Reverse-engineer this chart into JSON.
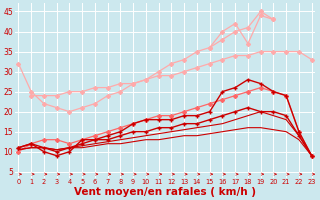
{
  "background_color": "#cce8ee",
  "grid_color": "#ffffff",
  "xlabel": "Vent moyen/en rafales ( km/h )",
  "xlabel_color": "#cc0000",
  "xlabel_fontsize": 7.5,
  "xtick_labels": [
    "0",
    "1",
    "2",
    "3",
    "4",
    "5",
    "6",
    "7",
    "8",
    "9",
    "10",
    "11",
    "12",
    "13",
    "14",
    "15",
    "16",
    "17",
    "18",
    "19",
    "20",
    "21",
    "22",
    "23"
  ],
  "ytick_vals": [
    5,
    10,
    15,
    20,
    25,
    30,
    35,
    40,
    45
  ],
  "ytick_labels": [
    "5",
    "10",
    "15",
    "20",
    "25",
    "30",
    "35",
    "40",
    "45"
  ],
  "ylim": [
    3.5,
    47
  ],
  "xlim": [
    -0.3,
    23.3
  ],
  "series": [
    {
      "x": [
        0,
        1,
        2,
        3,
        4,
        5,
        6,
        7,
        8,
        9,
        10,
        11,
        12,
        13,
        14,
        15,
        16,
        17,
        18,
        19,
        20
      ],
      "y": [
        32,
        25,
        22,
        21,
        20,
        21,
        22,
        24,
        25,
        27,
        28,
        30,
        32,
        33,
        35,
        36,
        38,
        40,
        41,
        45,
        43
      ],
      "color": "#ffaaaa",
      "marker": "D",
      "markersize": 2.0,
      "linewidth": 0.9,
      "alpha": 1.0
    },
    {
      "x": [
        15,
        16,
        17,
        18,
        19,
        20
      ],
      "y": [
        36,
        40,
        42,
        37,
        44,
        43
      ],
      "color": "#ffaaaa",
      "marker": "D",
      "markersize": 2.0,
      "linewidth": 0.9,
      "alpha": 1.0
    },
    {
      "x": [
        0,
        1,
        2,
        3,
        4,
        5,
        6,
        7,
        8,
        9,
        10,
        11,
        12,
        13,
        14,
        15,
        16,
        17,
        18,
        19,
        20,
        21,
        22,
        23
      ],
      "y": [
        null,
        24,
        24,
        24,
        25,
        25,
        26,
        26,
        27,
        27,
        28,
        29,
        29,
        30,
        31,
        32,
        33,
        34,
        34,
        35,
        35,
        35,
        35,
        33
      ],
      "color": "#ffaaaa",
      "marker": "D",
      "markersize": 2.0,
      "linewidth": 0.9,
      "alpha": 1.0
    },
    {
      "x": [
        0,
        1,
        2,
        3,
        4,
        5,
        6,
        7,
        8,
        9,
        10,
        11,
        12,
        13,
        14,
        15,
        16,
        17,
        18,
        19,
        20,
        21,
        22,
        23
      ],
      "y": [
        10,
        12,
        13,
        13,
        12,
        13,
        14,
        15,
        16,
        17,
        18,
        19,
        19,
        20,
        21,
        22,
        23,
        24,
        25,
        26,
        25,
        24,
        15,
        9
      ],
      "color": "#ff6666",
      "marker": "D",
      "markersize": 2.0,
      "linewidth": 0.9,
      "alpha": 1.0
    },
    {
      "x": [
        0,
        1,
        2,
        3,
        4,
        5,
        6,
        7,
        8,
        9,
        10,
        11,
        12,
        13,
        14,
        15,
        16,
        17,
        18,
        19,
        20,
        21,
        22,
        23
      ],
      "y": [
        11,
        12,
        10,
        9,
        10,
        13,
        13,
        14,
        15,
        17,
        18,
        18,
        18,
        19,
        19,
        20,
        25,
        26,
        28,
        27,
        25,
        24,
        15,
        9
      ],
      "color": "#cc0000",
      "marker": "+",
      "markersize": 3.5,
      "linewidth": 1.0,
      "alpha": 1.0
    },
    {
      "x": [
        0,
        1,
        2,
        3,
        4,
        5,
        6,
        7,
        8,
        9,
        10,
        11,
        12,
        13,
        14,
        15,
        16,
        17,
        18,
        19,
        20,
        21,
        22,
        23
      ],
      "y": [
        11,
        12,
        11,
        10,
        11,
        12,
        13,
        13,
        14,
        15,
        15,
        16,
        16,
        17,
        17,
        18,
        19,
        20,
        21,
        20,
        20,
        19,
        14,
        9
      ],
      "color": "#cc0000",
      "marker": "+",
      "markersize": 3.5,
      "linewidth": 1.0,
      "alpha": 1.0
    },
    {
      "x": [
        0,
        1,
        2,
        3,
        4,
        5,
        6,
        7,
        8,
        9,
        10,
        11,
        12,
        13,
        14,
        15,
        16,
        17,
        18,
        19,
        20,
        21,
        22,
        23
      ],
      "y": [
        10.5,
        11,
        11,
        10.5,
        11,
        11.5,
        12,
        12.5,
        13,
        13.5,
        14,
        14.5,
        15,
        15.5,
        16,
        16.5,
        17,
        18,
        19,
        20,
        19,
        18,
        14,
        9
      ],
      "color": "#cc0000",
      "marker": null,
      "markersize": 0,
      "linewidth": 0.8,
      "alpha": 1.0
    },
    {
      "x": [
        0,
        1,
        2,
        3,
        4,
        5,
        6,
        7,
        8,
        9,
        10,
        11,
        12,
        13,
        14,
        15,
        16,
        17,
        18,
        19,
        20,
        21,
        22,
        23
      ],
      "y": [
        10.5,
        11,
        11,
        10.5,
        11,
        11,
        11.5,
        12,
        12,
        12.5,
        13,
        13,
        13.5,
        14,
        14,
        14.5,
        15,
        15.5,
        16,
        16,
        15.5,
        15,
        13,
        9
      ],
      "color": "#cc0000",
      "marker": null,
      "markersize": 0,
      "linewidth": 0.8,
      "alpha": 1.0
    }
  ],
  "arrow_color": "#cc0000"
}
